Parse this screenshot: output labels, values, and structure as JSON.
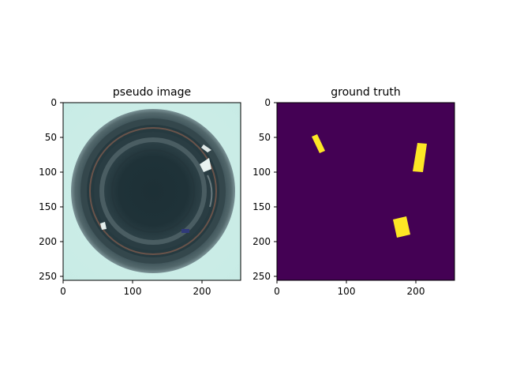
{
  "panels": [
    {
      "title": "pseudo image",
      "content": "image",
      "xticks": [
        "0",
        "100",
        "200"
      ],
      "yticks": [
        "0",
        "50",
        "100",
        "150",
        "200",
        "250"
      ]
    },
    {
      "title": "ground truth",
      "content": "mask",
      "xticks": [
        "0",
        "100",
        "200"
      ],
      "yticks": [
        "0",
        "50",
        "100",
        "150",
        "200",
        "250"
      ]
    }
  ],
  "image_extent": {
    "width": 256,
    "height": 256
  },
  "colors": {
    "mask_background": "#440154",
    "mask_foreground": "#fde725",
    "image_background": "#d6f2ec",
    "image_ring": "#2d4146"
  }
}
